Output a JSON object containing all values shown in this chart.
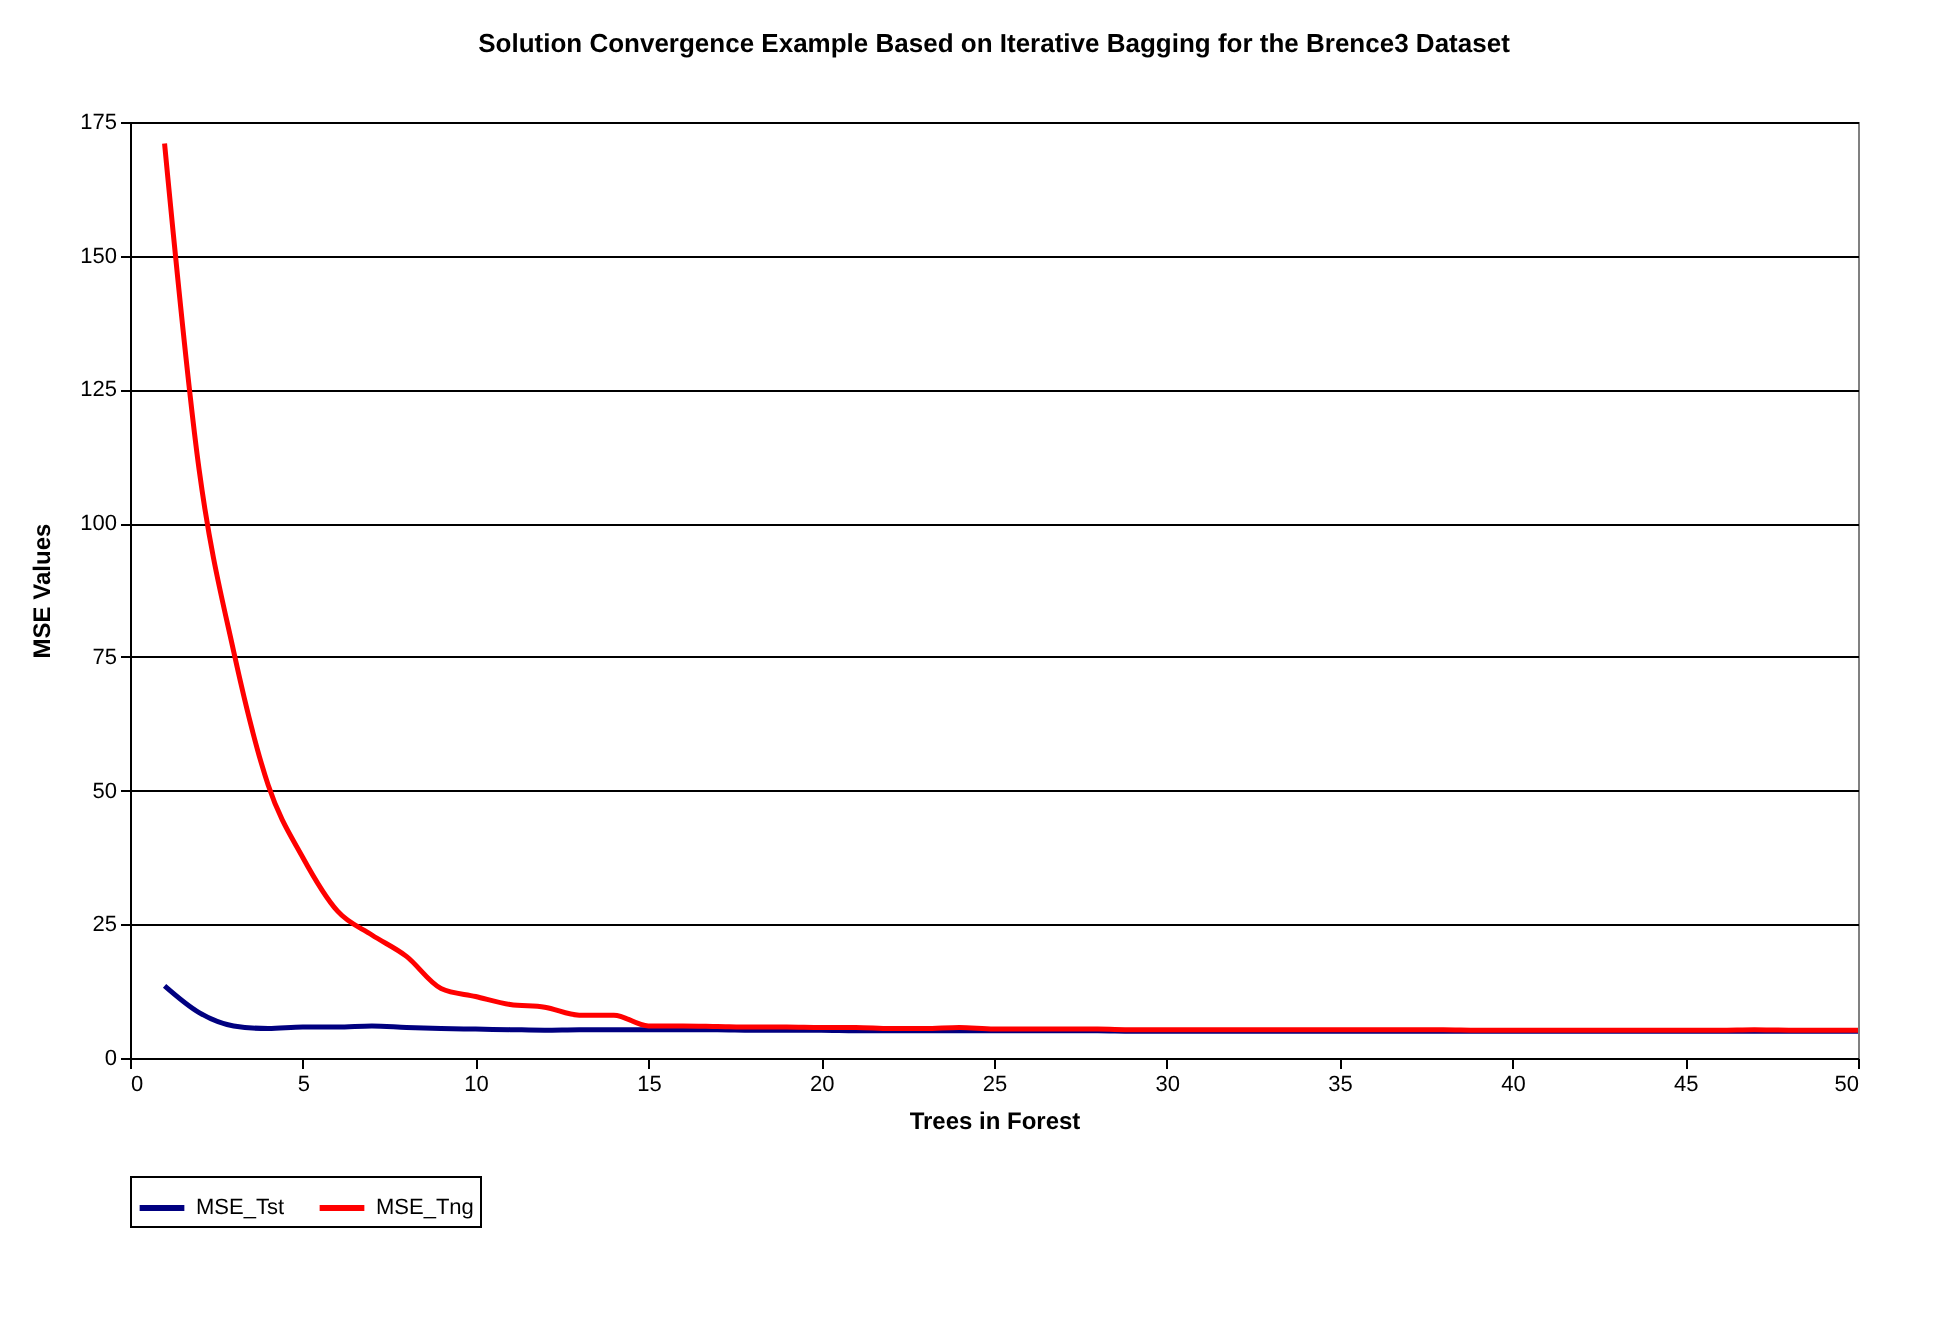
{
  "chart_data": {
    "type": "line",
    "title": "Solution Convergence Example Based on Iterative Bagging for the Brence3 Dataset",
    "xlabel": "Trees in Forest",
    "ylabel": "MSE Values",
    "x": [
      1,
      2,
      3,
      4,
      5,
      6,
      7,
      8,
      9,
      10,
      11,
      12,
      13,
      14,
      15,
      16,
      17,
      18,
      19,
      20,
      21,
      22,
      23,
      24,
      25,
      26,
      27,
      28,
      29,
      30,
      31,
      32,
      33,
      34,
      35,
      36,
      37,
      38,
      39,
      40,
      41,
      42,
      43,
      44,
      45,
      46,
      47,
      48,
      49,
      50
    ],
    "series": [
      {
        "name": "MSE_Tst",
        "color": "#000080",
        "values": [
          13.5,
          8.5,
          6,
          5.5,
          5.8,
          5.8,
          6,
          5.7,
          5.5,
          5.4,
          5.3,
          5.2,
          5.3,
          5.3,
          5.3,
          5.3,
          5.3,
          5.2,
          5.2,
          5.2,
          5.1,
          5.1,
          5.1,
          5.1,
          5.1,
          5.1,
          5.1,
          5.1,
          5.0,
          5.0,
          5.0,
          5.0,
          5.0,
          5.0,
          5.0,
          5.0,
          5.0,
          5.0,
          5.0,
          5.0,
          5.0,
          5.0,
          5.0,
          5.0,
          5.0,
          5.0,
          5.0,
          5.0,
          5.0,
          5.0
        ]
      },
      {
        "name": "MSE_Tng",
        "color": "#ff0000",
        "values": [
          171,
          110,
          76,
          51,
          37.5,
          27.5,
          23,
          19,
          13,
          11.5,
          10,
          9.5,
          8,
          8,
          6,
          6,
          5.9,
          5.8,
          5.8,
          5.7,
          5.7,
          5.5,
          5.5,
          5.7,
          5.4,
          5.4,
          5.4,
          5.4,
          5.3,
          5.3,
          5.3,
          5.3,
          5.3,
          5.3,
          5.3,
          5.3,
          5.3,
          5.3,
          5.2,
          5.2,
          5.2,
          5.2,
          5.2,
          5.2,
          5.2,
          5.2,
          5.3,
          5.2,
          5.2,
          5.2
        ]
      }
    ],
    "xlim": [
      0,
      50
    ],
    "xticks": [
      0,
      5,
      10,
      15,
      20,
      25,
      30,
      35,
      40,
      45,
      50
    ],
    "ylim": [
      0,
      175
    ],
    "yticks": [
      0,
      25,
      50,
      75,
      100,
      125,
      150,
      175
    ],
    "grid": "y",
    "legend": "bottom",
    "marker": "none",
    "line_style": "solid"
  }
}
